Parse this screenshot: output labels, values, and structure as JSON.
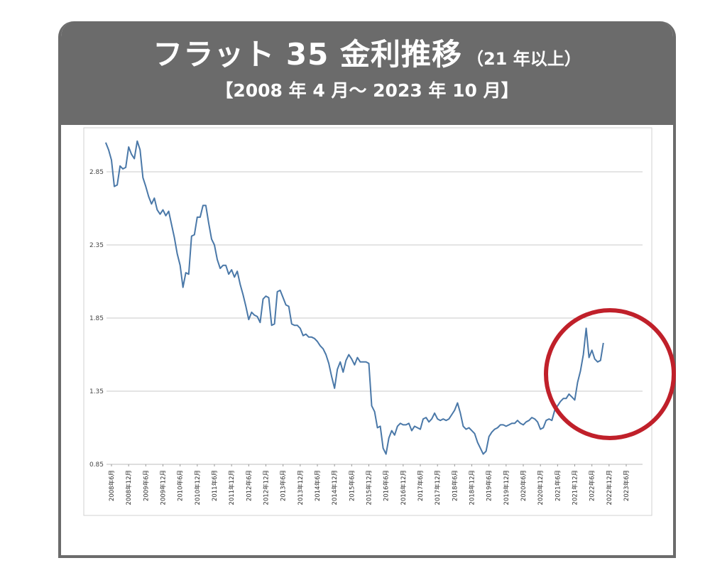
{
  "header": {
    "title": "フラット 35 金利推移",
    "title_sub": "（21 年以上）",
    "period": "【2008 年 4 月～ 2023 年 10 月】"
  },
  "colors": {
    "header_bg": "#6b6b6b",
    "line": "#4a78a8",
    "grid": "#c8c8c8",
    "highlight": "#c0202a"
  },
  "chart_data": {
    "type": "line",
    "title": "",
    "xlabel": "",
    "ylabel": "",
    "ylim": [
      0.85,
      3.05
    ],
    "yticks": [
      "0.85",
      "1.35",
      "1.85",
      "2.35",
      "2.85"
    ],
    "grid": "horizontal",
    "x_start": "2008-04",
    "x_end": "2023-10",
    "xtick_labels": [
      "2008年6月",
      "2008年12月",
      "2009年6月",
      "2009年12月",
      "2010年6月",
      "2010年12月",
      "2011年6月",
      "2011年12月",
      "2012年6月",
      "2012年12月",
      "2013年6月",
      "2013年12月",
      "2014年6月",
      "2014年12月",
      "2015年6月",
      "2015年12月",
      "2016年6月",
      "2016年12月",
      "2017年6月",
      "2017年12月",
      "2018年6月",
      "2018年12月",
      "2019年6月",
      "2019年12月",
      "2020年6月",
      "2020年12月",
      "2021年6月",
      "2021年12月",
      "2022年6月",
      "2022年12月",
      "2023年6月"
    ],
    "annotation": "red circle around 2022–2023 rise",
    "series": [
      {
        "values": [
          3.05,
          3.0,
          2.93,
          2.75,
          2.76,
          2.89,
          2.87,
          2.88,
          3.02,
          2.97,
          2.94,
          3.06,
          3.0,
          2.81,
          2.75,
          2.68,
          2.63,
          2.67,
          2.59,
          2.56,
          2.59,
          2.55,
          2.58,
          2.49,
          2.4,
          2.29,
          2.21,
          2.06,
          2.16,
          2.15,
          2.41,
          2.42,
          2.54,
          2.54,
          2.62,
          2.62,
          2.5,
          2.39,
          2.35,
          2.25,
          2.19,
          2.21,
          2.21,
          2.15,
          2.18,
          2.13,
          2.17,
          2.08,
          2.01,
          1.93,
          1.84,
          1.89,
          1.87,
          1.86,
          1.82,
          1.98,
          2.0,
          1.99,
          1.8,
          1.81,
          2.03,
          2.04,
          1.99,
          1.94,
          1.93,
          1.81,
          1.8,
          1.8,
          1.78,
          1.73,
          1.74,
          1.72,
          1.72,
          1.71,
          1.69,
          1.66,
          1.64,
          1.6,
          1.54,
          1.45,
          1.37,
          1.5,
          1.55,
          1.48,
          1.56,
          1.6,
          1.57,
          1.53,
          1.58,
          1.55,
          1.55,
          1.55,
          1.54,
          1.25,
          1.21,
          1.1,
          1.11,
          0.96,
          0.92,
          1.03,
          1.08,
          1.05,
          1.11,
          1.13,
          1.12,
          1.12,
          1.13,
          1.08,
          1.11,
          1.1,
          1.09,
          1.16,
          1.17,
          1.14,
          1.16,
          1.2,
          1.16,
          1.15,
          1.16,
          1.15,
          1.16,
          1.19,
          1.22,
          1.27,
          1.2,
          1.11,
          1.09,
          1.1,
          1.08,
          1.06,
          1.0,
          0.96,
          0.92,
          0.94,
          1.04,
          1.07,
          1.09,
          1.1,
          1.12,
          1.12,
          1.11,
          1.12,
          1.13,
          1.13,
          1.15,
          1.13,
          1.12,
          1.14,
          1.15,
          1.17,
          1.16,
          1.14,
          1.09,
          1.1,
          1.15,
          1.16,
          1.15,
          1.22,
          1.25,
          1.28,
          1.3,
          1.3,
          1.33,
          1.31,
          1.29,
          1.41,
          1.49,
          1.6,
          1.78,
          1.58,
          1.63,
          1.57,
          1.55,
          1.56,
          1.68
        ]
      }
    ]
  }
}
